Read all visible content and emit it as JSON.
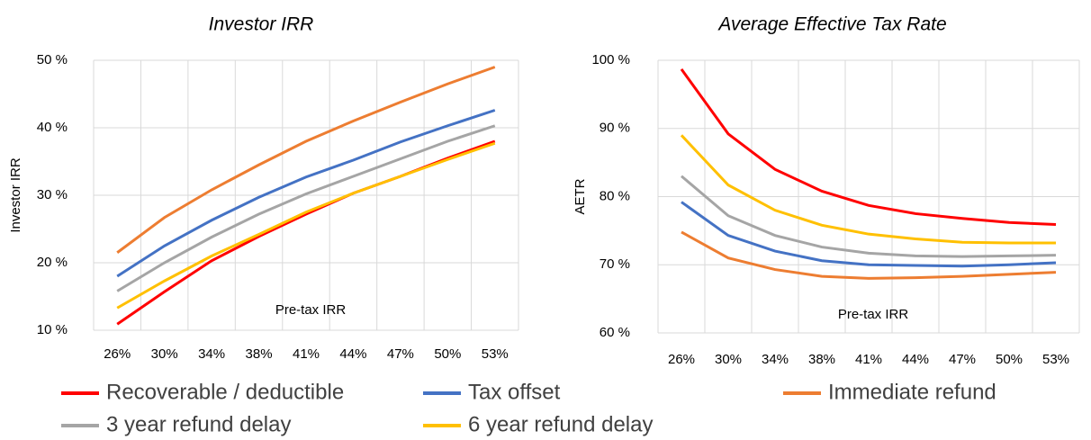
{
  "chart_data": [
    {
      "type": "line",
      "title": "Investor IRR",
      "y_label": "Investor IRR",
      "annotation": "Pre-tax IRR",
      "categories": [
        "26%",
        "30%",
        "34%",
        "38%",
        "41%",
        "44%",
        "47%",
        "50%",
        "53%"
      ],
      "ylim": [
        10,
        50
      ],
      "yticks": [
        {
          "value": 10,
          "label": "10 %"
        },
        {
          "value": 20,
          "label": "20 %"
        },
        {
          "value": 30,
          "label": "30 %"
        },
        {
          "value": 40,
          "label": "40 %"
        },
        {
          "value": 50,
          "label": "50 %"
        }
      ],
      "grid": true,
      "series": [
        {
          "name": "Recoverable / deductible",
          "color": "#ff0000",
          "values": [
            10.9,
            15.7,
            20.3,
            23.9,
            27.2,
            30.3,
            32.8,
            35.5,
            38.0
          ]
        },
        {
          "name": "Tax offset",
          "color": "#4472c4",
          "values": [
            18,
            22.5,
            26.3,
            29.7,
            32.7,
            35.2,
            37.9,
            40.3,
            42.6
          ]
        },
        {
          "name": "Immediate refund",
          "color": "#ed7d31",
          "values": [
            21.5,
            26.7,
            30.8,
            34.5,
            38,
            41,
            43.8,
            46.5,
            49
          ]
        },
        {
          "name": "3 year refund delay",
          "color": "#a5a5a5",
          "values": [
            15.8,
            20,
            23.8,
            27.2,
            30.2,
            32.8,
            35.4,
            38,
            40.3
          ]
        },
        {
          "name": "6 year refund delay",
          "color": "#ffc000",
          "values": [
            13.3,
            17.3,
            21,
            24.2,
            27.5,
            30.3,
            32.8,
            35.3,
            37.7
          ]
        }
      ]
    },
    {
      "type": "line",
      "title": "Average Effective Tax Rate",
      "y_label": "AETR",
      "annotation": "Pre-tax IRR",
      "categories": [
        "26%",
        "30%",
        "34%",
        "38%",
        "41%",
        "44%",
        "47%",
        "50%",
        "53%"
      ],
      "ylim": [
        60,
        100
      ],
      "yticks": [
        {
          "value": 60,
          "label": "60 %"
        },
        {
          "value": 70,
          "label": "70 %"
        },
        {
          "value": 80,
          "label": "80 %"
        },
        {
          "value": 90,
          "label": "90 %"
        },
        {
          "value": 100,
          "label": "100 %"
        }
      ],
      "grid": true,
      "series": [
        {
          "color": "#ff0000",
          "values": [
            98.7,
            89.2,
            84,
            80.8,
            78.7,
            77.5,
            76.8,
            76.2,
            75.9
          ]
        },
        {
          "color": "#4472c4",
          "values": [
            79.2,
            74.3,
            72,
            70.6,
            70,
            69.9,
            69.8,
            70,
            70.3
          ]
        },
        {
          "color": "#ed7d31",
          "values": [
            74.8,
            71,
            69.3,
            68.3,
            68,
            68.1,
            68.3,
            68.6,
            68.9
          ]
        },
        {
          "color": "#a5a5a5",
          "values": [
            83,
            77.2,
            74.3,
            72.6,
            71.7,
            71.3,
            71.2,
            71.3,
            71.4
          ]
        },
        {
          "color": "#ffc000",
          "values": [
            89,
            81.7,
            78,
            75.8,
            74.5,
            73.8,
            73.3,
            73.2,
            73.2
          ]
        }
      ]
    }
  ]
}
